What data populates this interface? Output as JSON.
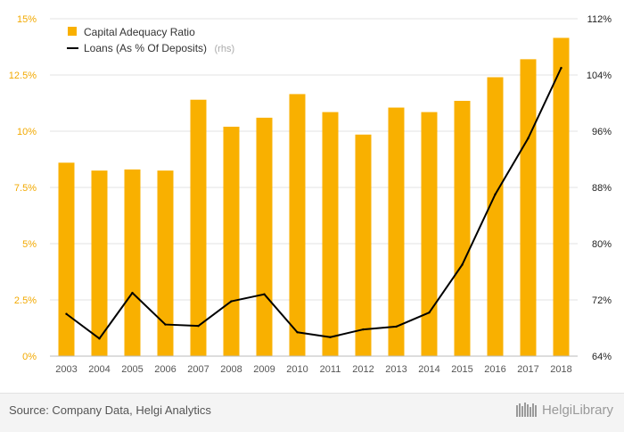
{
  "chart_data": {
    "type": "bar",
    "categories": [
      "2003",
      "2004",
      "2005",
      "2006",
      "2007",
      "2008",
      "2009",
      "2010",
      "2011",
      "2012",
      "2013",
      "2014",
      "2015",
      "2016",
      "2017",
      "2018"
    ],
    "series": [
      {
        "name": "Capital Adequacy Ratio",
        "type": "bar",
        "axis": "left",
        "color": "#f9b000",
        "values": [
          8.6,
          8.25,
          8.3,
          8.25,
          11.4,
          10.2,
          10.6,
          11.65,
          10.85,
          9.85,
          11.05,
          10.85,
          11.35,
          12.4,
          13.2,
          14.15
        ]
      },
      {
        "name": "Loans (As % Of Deposits)",
        "rhs_label": "(rhs)",
        "type": "line",
        "axis": "right",
        "color": "#000000",
        "values": [
          70.0,
          66.5,
          73.0,
          68.5,
          68.3,
          71.8,
          72.8,
          67.4,
          66.7,
          67.8,
          68.2,
          70.2,
          77.0,
          87.0,
          95.0,
          105.0
        ]
      }
    ],
    "y_left": {
      "lim": [
        0,
        15
      ],
      "ticks": [
        0,
        2.5,
        5,
        7.5,
        10,
        12.5,
        15
      ],
      "tick_labels": [
        "0%",
        "2.5%",
        "5%",
        "7.5%",
        "10%",
        "12.5%",
        "15%"
      ]
    },
    "y_right": {
      "lim": [
        64,
        112
      ],
      "ticks": [
        64,
        72,
        80,
        88,
        96,
        104,
        112
      ],
      "tick_labels": [
        "64%",
        "72%",
        "80%",
        "88%",
        "96%",
        "104%",
        "112%"
      ]
    },
    "legend_position": "top-left",
    "grid": true,
    "title": "",
    "xlabel": "",
    "ylabel": ""
  },
  "footer": {
    "source": "Source: Company Data, Helgi Analytics",
    "logo_text": "HelgiLibrary"
  }
}
